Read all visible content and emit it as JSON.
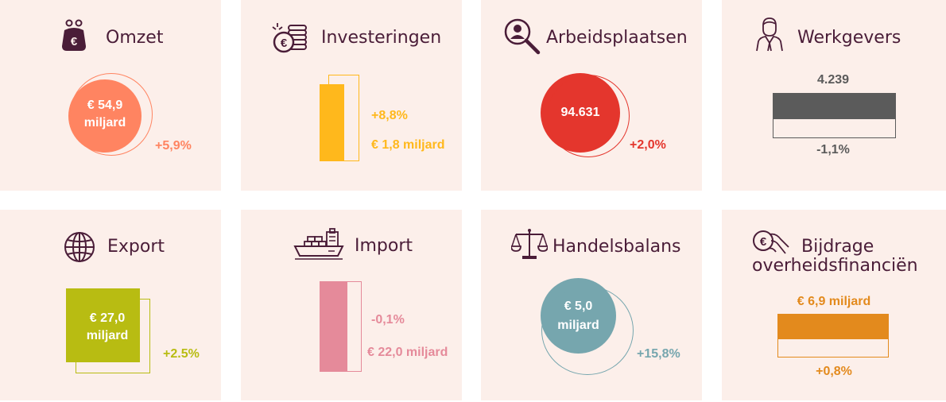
{
  "cards": [
    {
      "title": "Omzet",
      "value": "€ 54,9 miljard",
      "value_line1": "€ 54,9",
      "value_line2": "miljard",
      "change": "+5,9%",
      "color": "#ff8461",
      "icon": "purse-euro-icon"
    },
    {
      "title": "Investeringen",
      "value": "€ 1,8 miljard",
      "change": "+8,8%",
      "color": "#ffb81c",
      "icon": "coins-euro-icon"
    },
    {
      "title": "Arbeidsplaatsen",
      "value": "94.631",
      "change": "+2,0%",
      "color": "#e4362d",
      "icon": "magnifier-person-icon"
    },
    {
      "title": "Werkgevers",
      "value": "4.239",
      "change": "-1,1%",
      "color": "#5b5b5b",
      "icon": "employer-person-icon"
    },
    {
      "title": "Export",
      "value": "€ 27,0 miljard",
      "value_line1": "€ 27,0",
      "value_line2": "miljard",
      "change": "+2.5%",
      "color": "#b8bc12",
      "icon": "globe-icon"
    },
    {
      "title": "Import",
      "value": "€ 22,0 miljard",
      "change": "-0,1%",
      "color": "#e58a9a",
      "icon": "cargo-ship-icon"
    },
    {
      "title": "Handelsbalans",
      "value": "€ 5,0 miljard",
      "value_line1": "€ 5,0",
      "value_line2": "miljard",
      "change": "+15,8%",
      "color": "#76a6ae",
      "icon": "scales-icon"
    },
    {
      "title_line1": "Bijdrage",
      "title_line2": "overheidsfinanciën",
      "value": "€ 6,9 miljard",
      "change": "+0,8%",
      "color": "#e38a1d",
      "icon": "hand-euro-icon"
    }
  ],
  "theme": {
    "card_bg": "#fcefea",
    "title_color": "#4a1d38"
  }
}
